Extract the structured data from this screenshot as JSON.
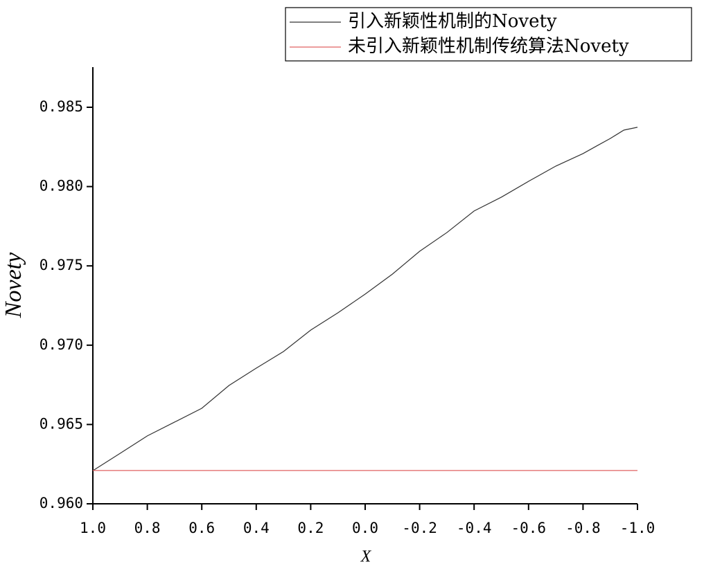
{
  "chart_data": {
    "type": "line",
    "x_label": "X",
    "y_label": "Novety",
    "x": [
      1,
      0.9,
      0.8,
      0.7,
      0.6,
      0.5,
      0.4,
      0.3,
      0.2,
      0.1,
      0,
      -0.1,
      -0.2,
      -0.3,
      -0.4,
      -0.5,
      -0.6,
      -0.7,
      -0.8,
      -0.85,
      -0.9,
      -0.95,
      -1
    ],
    "series": [
      {
        "name": "引入新颖性机制的Novety",
        "color": "#333333",
        "values": [
          0.96209,
          0.96318,
          0.96428,
          0.96515,
          0.96602,
          0.96746,
          0.96855,
          0.9696,
          0.97095,
          0.97204,
          0.97322,
          0.97448,
          0.97592,
          0.9771,
          0.97846,
          0.97933,
          0.98033,
          0.98129,
          0.98208,
          0.98256,
          0.98303,
          0.98356,
          0.98374
        ]
      },
      {
        "name": "未引入新颖性机制传统算法Novety",
        "color": "#e06060",
        "values": [
          0.9621,
          0.9621,
          0.9621,
          0.9621,
          0.9621,
          0.9621,
          0.9621,
          0.9621,
          0.9621,
          0.9621,
          0.9621,
          0.9621,
          0.9621,
          0.9621,
          0.9621,
          0.9621,
          0.9621,
          0.9621,
          0.9621,
          0.9621,
          0.9621,
          0.9621,
          0.9621
        ]
      }
    ],
    "xlim": [
      1,
      -1
    ],
    "xticks": [
      {
        "value": 1,
        "label": "1.0"
      },
      0.8,
      0.6,
      0.4,
      0.2,
      {
        "value": 0,
        "label": "0.0"
      },
      -0.2,
      -0.4,
      -0.6,
      -0.8,
      {
        "value": -1,
        "label": "-1.0"
      }
    ],
    "ylim": [
      0.96,
      0.98753
    ],
    "yticks": [
      {
        "value": 0.96,
        "label": "0.960"
      },
      0.965,
      {
        "value": 0.97,
        "label": "0.970"
      },
      0.975,
      {
        "value": 0.98,
        "label": "0.980"
      },
      0.985
    ],
    "grid": false,
    "legend": "top-right"
  }
}
